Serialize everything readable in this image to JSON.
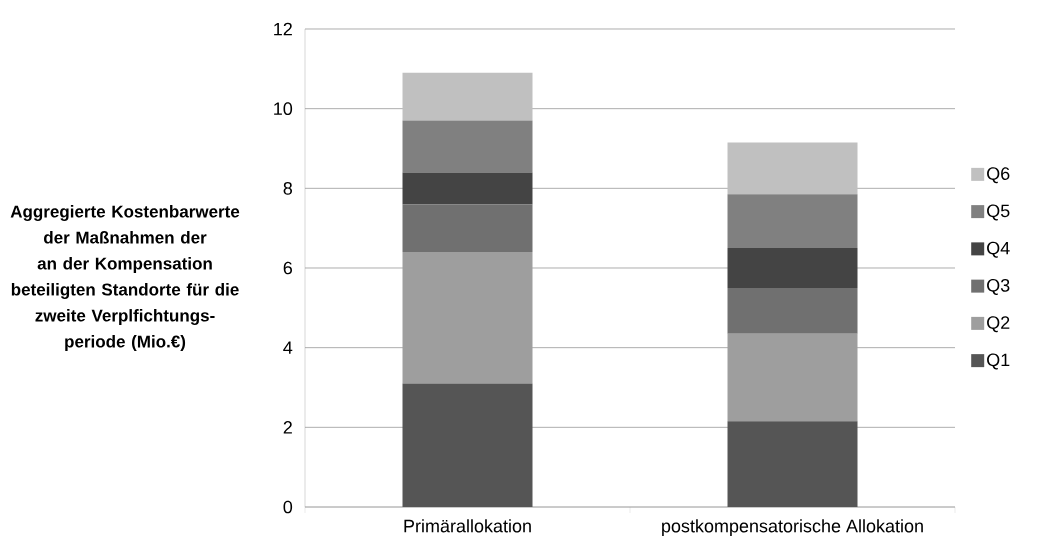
{
  "chart_data": {
    "type": "bar",
    "stacked": true,
    "ylabel": "Aggregierte Kostenbarwerte der Maßnahmen der an der Kompensation beteiligten Standorte für die zweite Verplfichtungs-periode (Mio.€)",
    "categories": [
      "Primärallokation",
      "postkompensatorische Allokation"
    ],
    "series": [
      {
        "name": "Q1",
        "color": "#555555",
        "values": [
          3.1,
          2.15
        ]
      },
      {
        "name": "Q2",
        "color": "#9e9e9e",
        "values": [
          3.3,
          2.2
        ]
      },
      {
        "name": "Q3",
        "color": "#707070",
        "values": [
          1.2,
          1.15
        ]
      },
      {
        "name": "Q4",
        "color": "#444444",
        "values": [
          0.8,
          1.0
        ]
      },
      {
        "name": "Q5",
        "color": "#808080",
        "values": [
          1.3,
          1.35
        ]
      },
      {
        "name": "Q6",
        "color": "#c0c0c0",
        "values": [
          1.2,
          1.3
        ]
      }
    ],
    "ylim": [
      0,
      12
    ],
    "yticks": [
      0,
      2,
      4,
      6,
      8,
      10,
      12
    ],
    "grid": "y",
    "legend": "right"
  }
}
